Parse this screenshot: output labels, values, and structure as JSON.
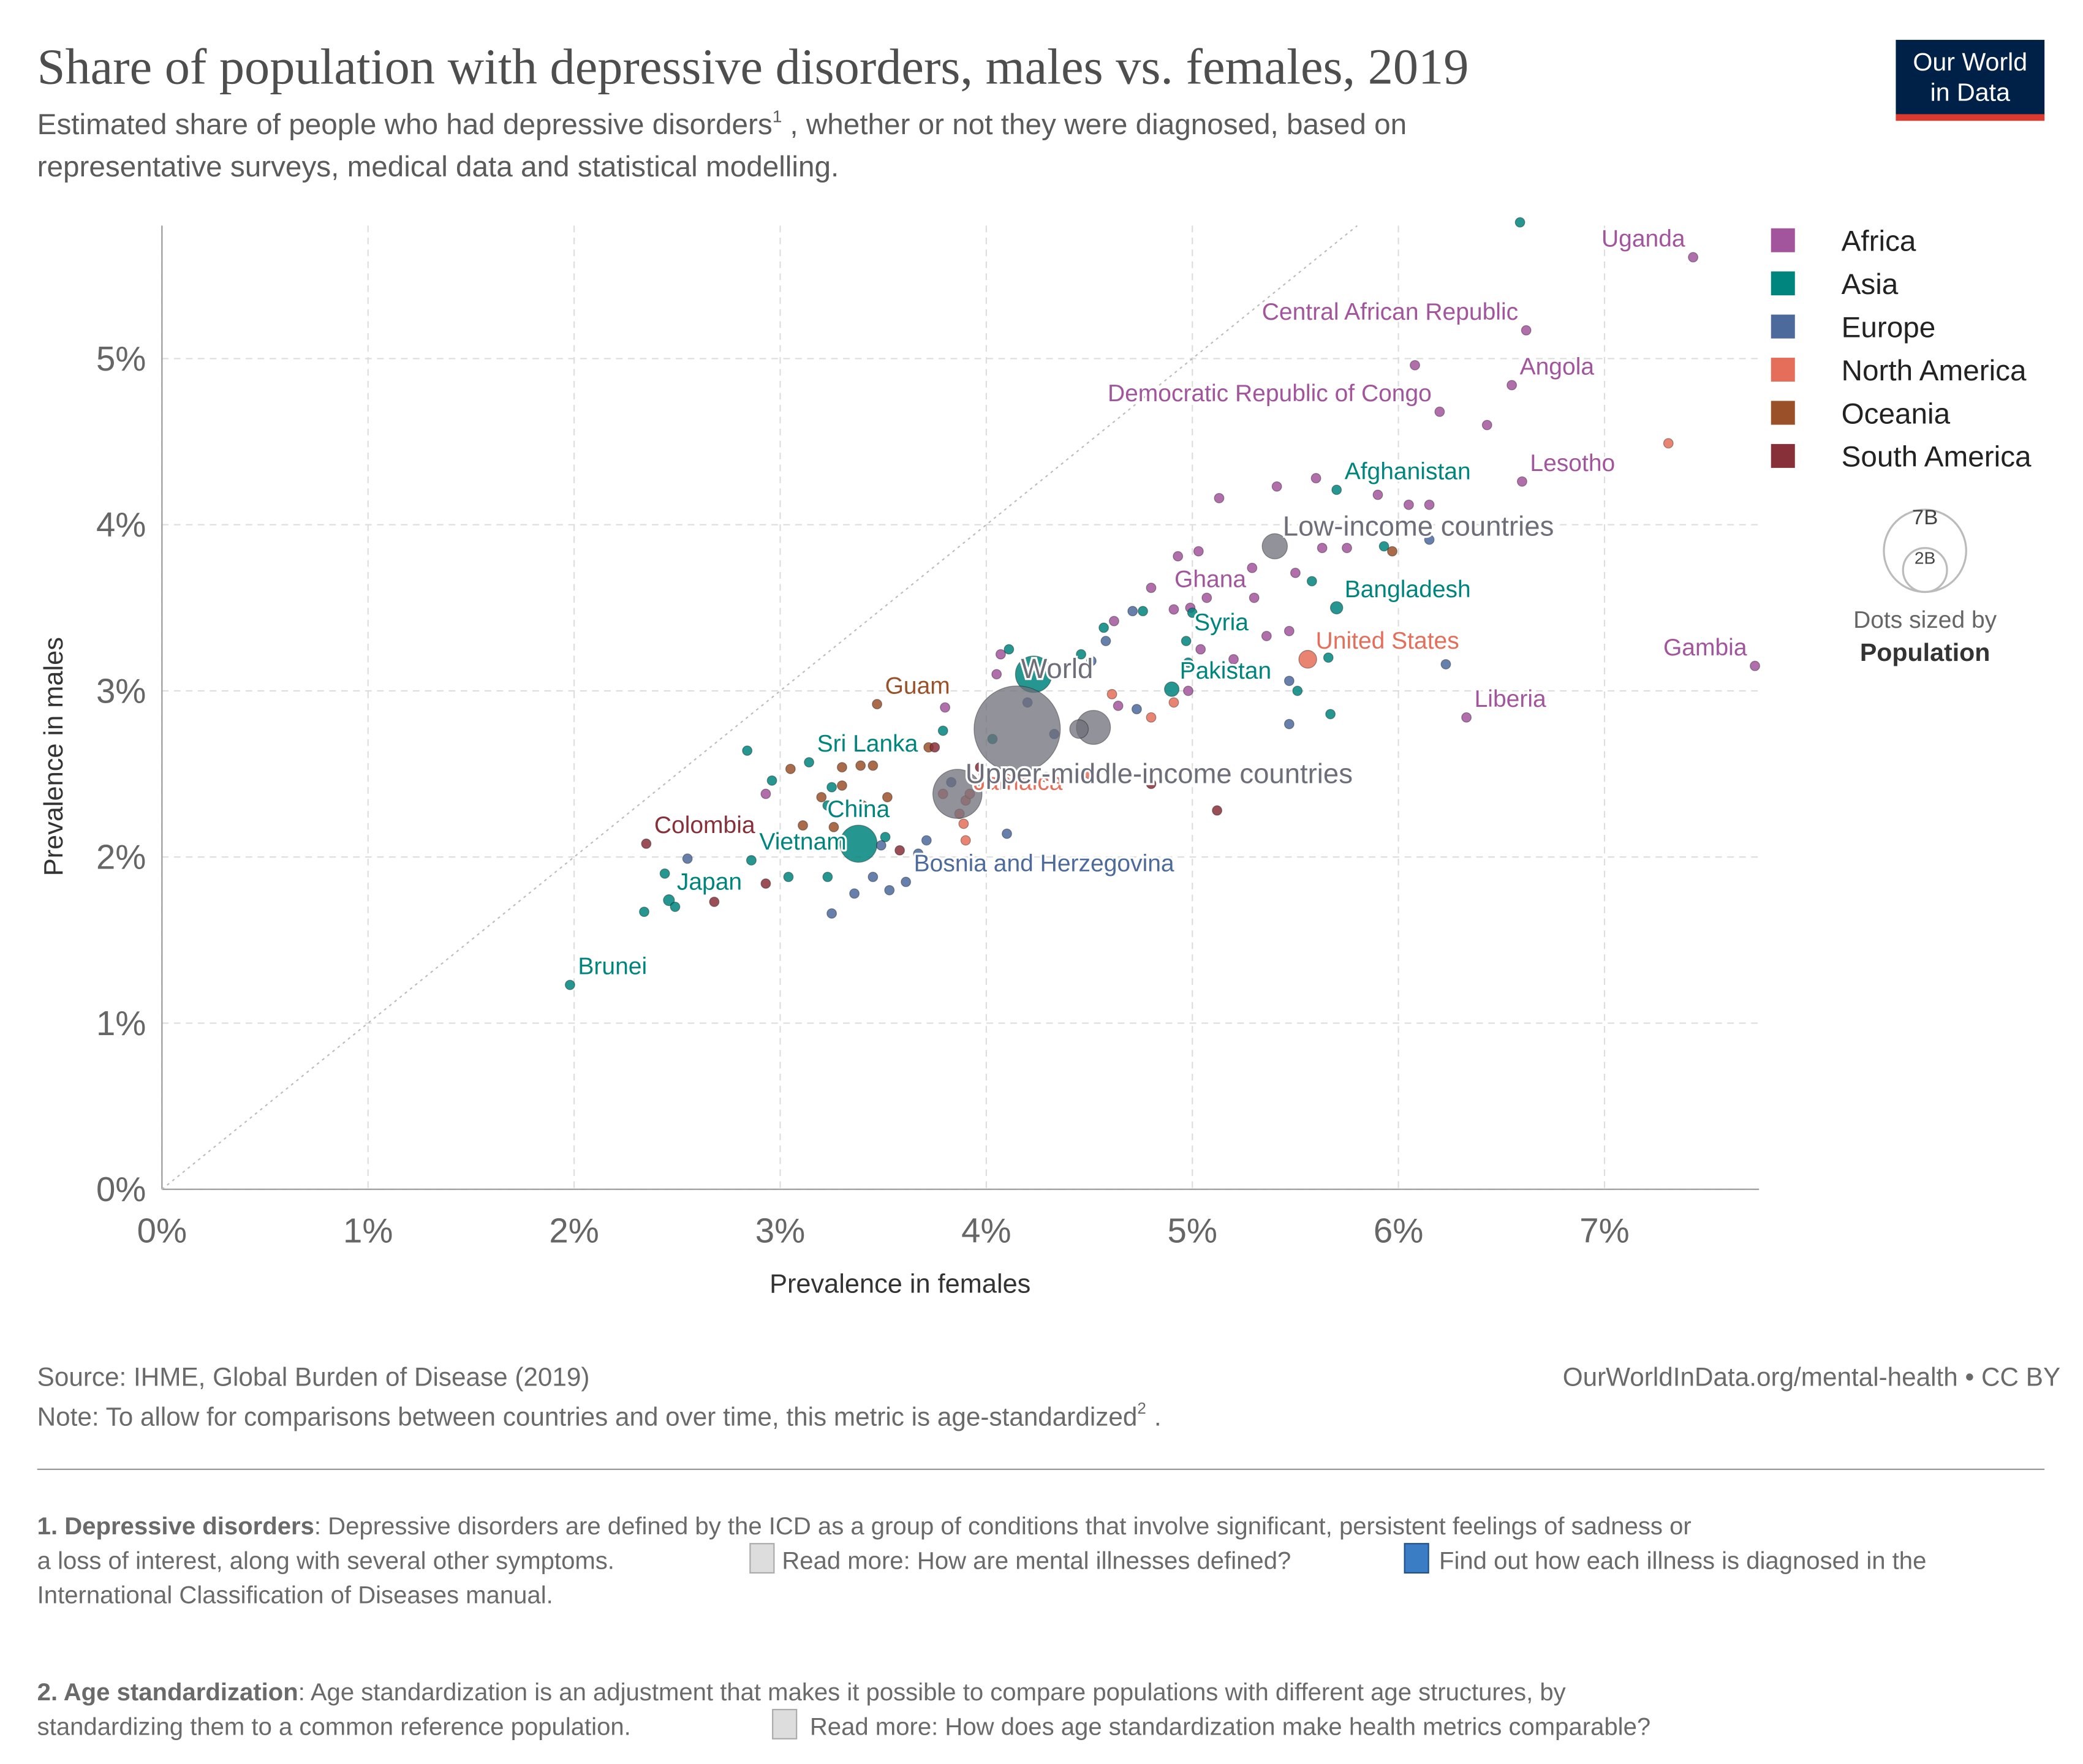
{
  "chart_data": {
    "type": "scatter",
    "title": "Share of population with depressive disorders, males vs. females, 2019",
    "subtitle": {
      "text": "Estimated share of people who had depressive disorders",
      "superscript": "1",
      "rest": ", whether or not they were diagnosed, based on",
      "line2": "representative surveys, medical data and statistical modelling."
    },
    "logo": [
      "Our World",
      "in Data"
    ],
    "xlabel": "Prevalence in females",
    "ylabel": "Prevalence in males",
    "xlim": [
      0,
      7.75
    ],
    "ylim": [
      0,
      5.8
    ],
    "xticks": [
      {
        "value": 0,
        "label": "0%"
      },
      {
        "value": 1,
        "label": "1%"
      },
      {
        "value": 2,
        "label": "2%"
      },
      {
        "value": 3,
        "label": "3%"
      },
      {
        "value": 4,
        "label": "4%"
      },
      {
        "value": 5,
        "label": "5%"
      },
      {
        "value": 6,
        "label": "6%"
      },
      {
        "value": 7,
        "label": "7%"
      }
    ],
    "yticks": [
      {
        "value": 0,
        "label": "0%"
      },
      {
        "value": 1,
        "label": "1%"
      },
      {
        "value": 2,
        "label": "2%"
      },
      {
        "value": 3,
        "label": "3%"
      },
      {
        "value": 4,
        "label": "4%"
      },
      {
        "value": 5,
        "label": "5%"
      }
    ],
    "grid": true,
    "diagonal": true,
    "series": [
      {
        "name": "Africa",
        "color": "#a2559c",
        "x": [
          7.43,
          6.62,
          6.55,
          6.2,
          6.6,
          5.3,
          7.73,
          6.33,
          6.08,
          6.43,
          5.6,
          5.41,
          5.9,
          5.13,
          6.05,
          6.15,
          5.03,
          4.93,
          5.75,
          5.63,
          5.29,
          5.5,
          4.8,
          5.07,
          4.91,
          4.99,
          5.47,
          4.62,
          5.04,
          4.07,
          4.05,
          4.98,
          2.93,
          3.8,
          4.64,
          5.36,
          5.2
        ],
        "values": [
          5.61,
          5.17,
          4.84,
          4.68,
          4.26,
          3.56,
          3.15,
          2.84,
          4.96,
          4.6,
          4.28,
          4.23,
          4.18,
          4.16,
          4.12,
          4.12,
          3.84,
          3.81,
          3.86,
          3.86,
          3.74,
          3.71,
          3.62,
          3.56,
          3.49,
          3.5,
          3.36,
          3.42,
          3.25,
          3.22,
          3.1,
          3.0,
          2.38,
          2.9,
          2.91,
          3.33,
          3.19
        ],
        "labels": [
          "Uganda",
          "Central African Republic",
          "Angola",
          "Democratic Republic of Congo",
          "Lesotho",
          "Ghana",
          "Gambia",
          "Liberia",
          null,
          null,
          null,
          null,
          null,
          null,
          null,
          null,
          null,
          null,
          null,
          null,
          null,
          null,
          null,
          null,
          null,
          null,
          null,
          null,
          null,
          null,
          null,
          null,
          null,
          null,
          null,
          null,
          null
        ]
      },
      {
        "name": "Asia",
        "color": "#00847e",
        "x": [
          5.7,
          5.7,
          4.97,
          4.9,
          3.14,
          3.38,
          2.86,
          2.46,
          1.98,
          4.23,
          6.59,
          4.76,
          4.57,
          4.11,
          4.98,
          5.66,
          5.58,
          5.93,
          5.51,
          5.67,
          2.84,
          3.79,
          4.03,
          2.96,
          3.25,
          3.23,
          3.51,
          3.04,
          3.23,
          2.44,
          2.34,
          2.49,
          4.46,
          5.0
        ],
        "values": [
          4.21,
          3.5,
          3.3,
          3.01,
          2.57,
          2.08,
          1.98,
          1.74,
          1.23,
          3.1,
          5.82,
          3.48,
          3.38,
          3.25,
          3.17,
          3.2,
          3.66,
          3.87,
          3.0,
          2.86,
          2.64,
          2.76,
          2.71,
          2.46,
          2.42,
          2.31,
          2.12,
          1.88,
          1.88,
          1.9,
          1.67,
          1.7,
          3.22,
          3.47
        ],
        "labels": [
          "Afghanistan",
          "Bangladesh",
          "Syria",
          "Pakistan",
          "Sri Lanka",
          "China",
          "Vietnam",
          "Japan",
          "Brunei",
          null,
          null,
          null,
          null,
          null,
          null,
          null,
          null,
          null,
          null,
          null,
          null,
          null,
          null,
          null,
          null,
          null,
          null,
          null,
          null,
          null,
          null,
          null,
          null,
          null
        ],
        "population": [
          null,
          0.16,
          null,
          0.22,
          null,
          1.43,
          0.097,
          0.126,
          null,
          1.38,
          null,
          null,
          null,
          null,
          null,
          null,
          null,
          null,
          null,
          null,
          null,
          null,
          null,
          null,
          null,
          null,
          null,
          null,
          null,
          null,
          null,
          null,
          null,
          null
        ]
      },
      {
        "name": "Europe",
        "color": "#4c6a9c",
        "x": [
          3.61,
          6.15,
          6.23,
          5.47,
          5.47,
          4.71,
          4.58,
          4.51,
          4.73,
          4.1,
          3.71,
          3.49,
          3.45,
          3.53,
          3.36,
          3.25,
          2.55,
          3.67,
          4.2,
          4.33,
          3.83
        ],
        "values": [
          1.85,
          3.91,
          3.16,
          3.06,
          2.8,
          3.48,
          3.3,
          3.18,
          2.89,
          2.14,
          2.1,
          2.07,
          1.88,
          1.8,
          1.78,
          1.66,
          1.99,
          2.02,
          2.93,
          2.74,
          2.45
        ],
        "labels": [
          "Bosnia and Herzegovina",
          null,
          null,
          null,
          null,
          null,
          null,
          null,
          null,
          null,
          null,
          null,
          null,
          null,
          null,
          null,
          null,
          null,
          null,
          null,
          null
        ]
      },
      {
        "name": "North America",
        "color": "#e56e5a",
        "x": [
          5.56,
          3.9,
          7.31,
          4.91,
          4.8,
          4.61,
          4.5,
          4.1,
          3.89,
          3.9,
          3.79,
          3.92,
          3.87
        ],
        "values": [
          3.19,
          2.34,
          4.49,
          2.93,
          2.84,
          2.98,
          2.5,
          2.47,
          2.2,
          2.1,
          2.38,
          2.38,
          2.26
        ],
        "labels": [
          "United States",
          "Jamaica",
          null,
          null,
          null,
          null,
          null,
          null,
          null,
          null,
          null,
          null,
          null
        ],
        "population": [
          0.33,
          null,
          null,
          null,
          null,
          null,
          null,
          null,
          null,
          null,
          null,
          null,
          null
        ]
      },
      {
        "name": "Oceania",
        "color": "#9a5129",
        "x": [
          3.47,
          5.97,
          3.05,
          3.3,
          3.39,
          3.45,
          3.3,
          3.11,
          3.26,
          3.52,
          3.4,
          3.72,
          3.2
        ],
        "values": [
          2.92,
          3.84,
          2.53,
          2.54,
          2.55,
          2.55,
          2.43,
          2.19,
          2.18,
          2.36,
          2.31,
          2.66,
          2.36
        ],
        "labels": [
          "Guam",
          null,
          null,
          null,
          null,
          null,
          null,
          null,
          null,
          null,
          null,
          null,
          null
        ]
      },
      {
        "name": "South America",
        "color": "#883039",
        "x": [
          2.35,
          5.12,
          4.8,
          4.29,
          3.58,
          2.93,
          2.68,
          3.75,
          3.97
        ],
        "values": [
          2.08,
          2.28,
          2.44,
          2.48,
          2.04,
          1.84,
          1.73,
          2.66,
          2.54
        ],
        "labels": [
          "Colombia",
          null,
          null,
          null,
          null,
          null,
          null,
          null,
          null
        ]
      }
    ],
    "aggregates": {
      "color": "#6d6e79",
      "x": [
        4.15,
        3.86,
        5.4,
        4.52,
        4.45
      ],
      "values": [
        2.77,
        2.38,
        3.87,
        2.78,
        2.77
      ],
      "labels": [
        "World",
        "Upper-middle-income countries",
        "Low-income countries",
        null,
        null
      ],
      "population": [
        7.7,
        2.5,
        0.66,
        1.2,
        0.36
      ]
    },
    "size_legend": {
      "title": "Dots sized by",
      "variable": "Population",
      "sizes": [
        {
          "value": 7,
          "label": "7B"
        },
        {
          "value": 2,
          "label": "2B"
        }
      ]
    },
    "source": "Source: IHME, Global Burden of Disease (2019)",
    "url": "OurWorldInData.org/mental-health • CC BY",
    "note": {
      "text": "Note: To allow for comparisons between countries and over time, this metric is age-standardized",
      "superscript": "2",
      "end": "."
    },
    "footnotes": [
      {
        "term": "1. Depressive disorders",
        "line1": ": Depressive disorders are defined by the ICD as a group of conditions that involve significant, persistent feelings of sadness or",
        "line2": "a loss of interest, along with several other symptoms.",
        "link1": "Read more: How are mental illnesses defined?",
        "link2": "Find out how each illness is diagnosed in the",
        "line3": "International Classification of Diseases manual."
      },
      {
        "term": "2. Age standardization",
        "line1": ": Age standardization is an adjustment that makes it possible to compare populations with different age structures, by",
        "line2": "standardizing them to a common reference population.",
        "link1": "Read more: How does age standardization make health metrics comparable?"
      }
    ]
  }
}
